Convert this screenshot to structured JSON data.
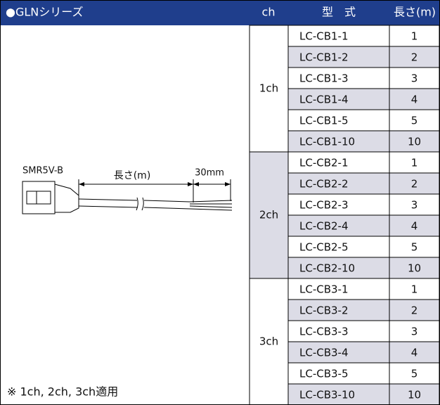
{
  "table": {
    "header": [
      "●GLNシリーズ",
      "ch",
      "型　式",
      "長さ(m)"
    ],
    "groups": [
      {
        "ch": "1ch",
        "rows": [
          {
            "model": "LC-CB1-1",
            "length": 1
          },
          {
            "model": "LC-CB1-2",
            "length": 2
          },
          {
            "model": "LC-CB1-3",
            "length": 3
          },
          {
            "model": "LC-CB1-4",
            "length": 4
          },
          {
            "model": "LC-CB1-5",
            "length": 5
          },
          {
            "model": "LC-CB1-10",
            "length": 10
          }
        ]
      },
      {
        "ch": "2ch",
        "rows": [
          {
            "model": "LC-CB2-1",
            "length": 1
          },
          {
            "model": "LC-CB2-2",
            "length": 2
          },
          {
            "model": "LC-CB2-3",
            "length": 3
          },
          {
            "model": "LC-CB2-4",
            "length": 4
          },
          {
            "model": "LC-CB2-5",
            "length": 5
          },
          {
            "model": "LC-CB2-10",
            "length": 10
          }
        ]
      },
      {
        "ch": "3ch",
        "rows": [
          {
            "model": "LC-CB3-1",
            "length": 1
          },
          {
            "model": "LC-CB3-2",
            "length": 2
          },
          {
            "model": "LC-CB3-3",
            "length": 3
          },
          {
            "model": "LC-CB3-4",
            "length": 4
          },
          {
            "model": "LC-CB3-5",
            "length": 5
          },
          {
            "model": "LC-CB3-10",
            "length": 10
          }
        ]
      }
    ]
  },
  "diagram": {
    "connector": "SMR5V-B",
    "length_label": "長さ(m)",
    "tail_label": "30mm"
  },
  "note": "※ 1ch, 2ch, 3ch適用"
}
